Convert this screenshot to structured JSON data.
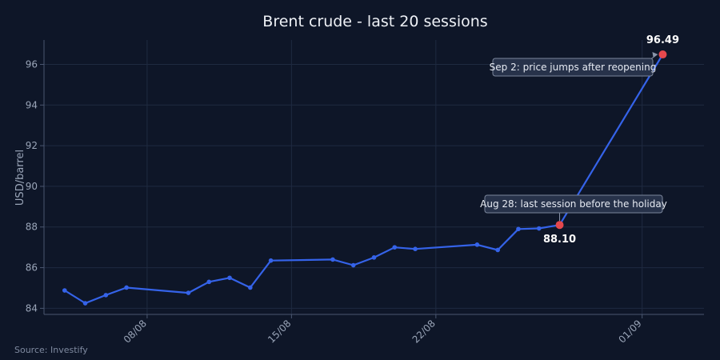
{
  "source": "Source: Investify",
  "colors": {
    "background": "#0e1628",
    "line": "#3563e9",
    "highlight": "#e5484d",
    "grid": "#1f2a40"
  },
  "chart_data": {
    "type": "line",
    "title": "Brent crude - last 20 sessions",
    "xlabel": "",
    "ylabel": "USD/barrel",
    "ylim": [
      83.7,
      97.2
    ],
    "xlim": [
      "2024-08-03",
      "2024-09-04"
    ],
    "yticks": [
      84,
      86,
      88,
      90,
      92,
      94,
      96
    ],
    "xticks": [
      {
        "date": "2024-08-08",
        "label": "08/08"
      },
      {
        "date": "2024-08-15",
        "label": "15/08"
      },
      {
        "date": "2024-08-22",
        "label": "22/08"
      },
      {
        "date": "2024-09-01",
        "label": "01/09"
      }
    ],
    "grid": true,
    "series": [
      {
        "values": [
          {
            "x": "2024-08-04",
            "y": 84.88
          },
          {
            "x": "2024-08-05",
            "y": 84.25
          },
          {
            "x": "2024-08-06",
            "y": 84.65
          },
          {
            "x": "2024-08-07",
            "y": 85.02
          },
          {
            "x": "2024-08-10",
            "y": 84.76
          },
          {
            "x": "2024-08-11",
            "y": 85.3
          },
          {
            "x": "2024-08-12",
            "y": 85.5
          },
          {
            "x": "2024-08-13",
            "y": 85.02
          },
          {
            "x": "2024-08-14",
            "y": 86.35
          },
          {
            "x": "2024-08-17",
            "y": 86.4
          },
          {
            "x": "2024-08-18",
            "y": 86.12
          },
          {
            "x": "2024-08-19",
            "y": 86.5
          },
          {
            "x": "2024-08-20",
            "y": 87.0
          },
          {
            "x": "2024-08-21",
            "y": 86.92
          },
          {
            "x": "2024-08-24",
            "y": 87.13
          },
          {
            "x": "2024-08-25",
            "y": 86.87
          },
          {
            "x": "2024-08-26",
            "y": 87.9
          },
          {
            "x": "2024-08-27",
            "y": 87.93
          },
          {
            "x": "2024-08-28",
            "y": 88.1
          },
          {
            "x": "2024-09-02",
            "y": 96.49
          }
        ]
      }
    ],
    "highlights": [
      {
        "x": "2024-08-28",
        "y": 88.1,
        "label": "88.10",
        "annotation": "Aug 28: last session before the holiday"
      },
      {
        "x": "2024-09-02",
        "y": 96.49,
        "label": "96.49",
        "annotation": "Sep 2: price jumps after reopening"
      }
    ]
  }
}
